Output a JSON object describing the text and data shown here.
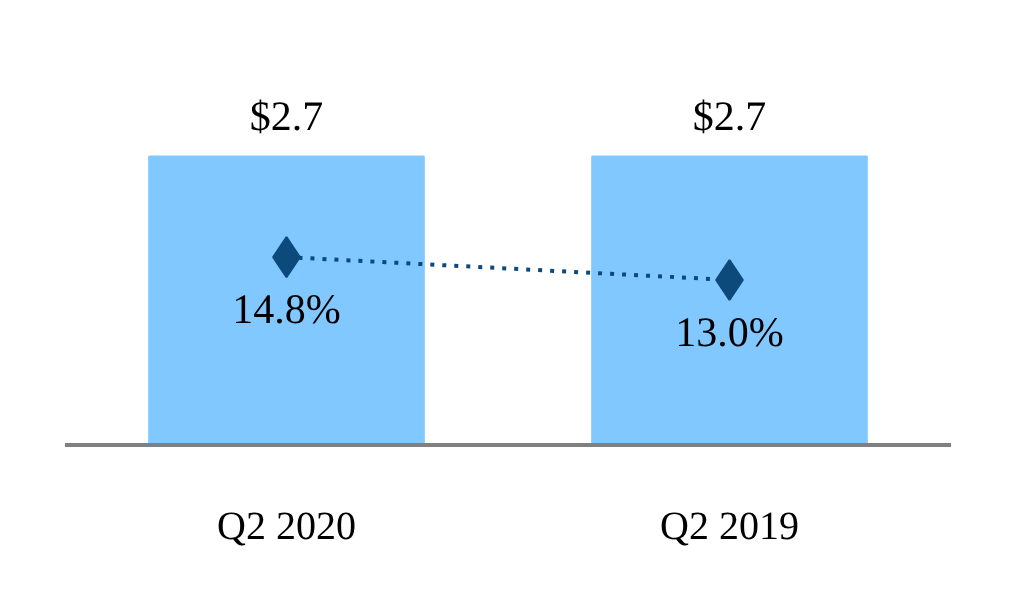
{
  "chart_data": {
    "type": "bar",
    "categories": [
      "Q2 2020",
      "Q2 2019"
    ],
    "tick_labels": "x",
    "grid": false,
    "series": [
      {
        "color": "#80c8ff",
        "values": [
          2.7,
          2.7
        ],
        "value_labels": [
          "$2.7",
          "$2.7"
        ]
      },
      {
        "type": "line",
        "axis": "y2",
        "color": "#0b4a7a",
        "values": [
          14.8,
          13.0
        ],
        "value_labels": [
          "14.8%",
          "13.0%"
        ],
        "marker": "diamond",
        "line_style": "dotted"
      }
    ]
  }
}
